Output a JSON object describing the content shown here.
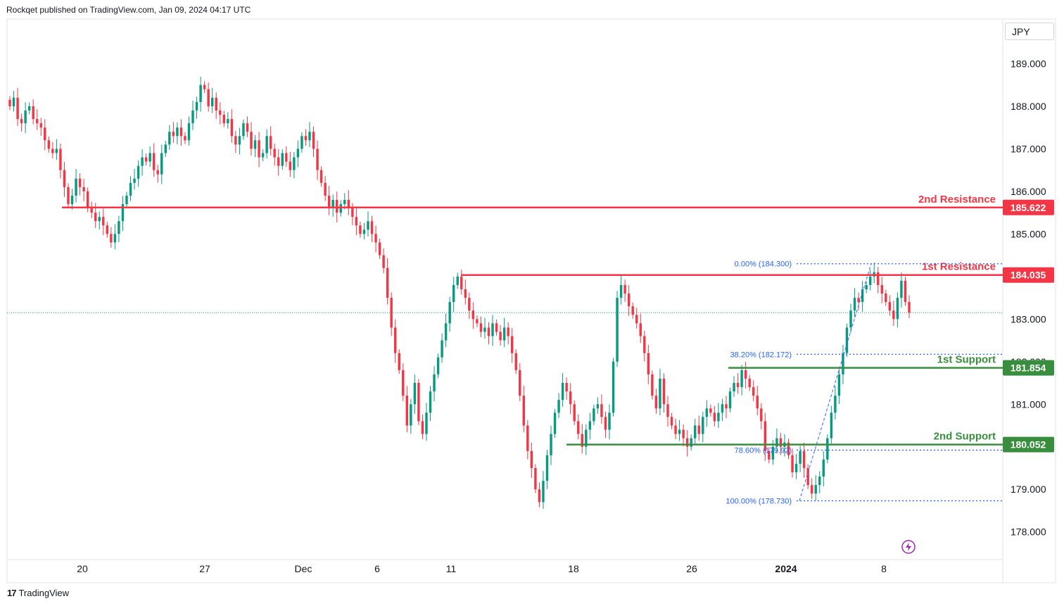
{
  "header": {
    "published_by": "Rockqet published on TradingView.com, Jan 09, 2024 04:17 UTC"
  },
  "currency": "JPY",
  "footer": {
    "brand": "TradingView",
    "logo_mark": "17"
  },
  "colors": {
    "up": "#089981",
    "down": "#f23645",
    "resistance": "#f23645",
    "support": "#388e3c",
    "fib": "#2962ff",
    "grid_border": "#e0e3eb"
  },
  "chart_data": {
    "type": "candlestick",
    "y_axis": {
      "ticks": [
        189.0,
        188.0,
        187.0,
        186.0,
        185.0,
        184.0,
        183.0,
        182.0,
        181.0,
        180.0,
        179.0,
        178.0
      ],
      "tick_labels": [
        "189.000",
        "188.000",
        "187.000",
        "186.000",
        "185.000",
        "184.000",
        "183.000",
        "182.000",
        "181.000",
        "180.000",
        "179.000",
        "178.000"
      ],
      "ylim": [
        177.35,
        190.05
      ]
    },
    "x_axis": {
      "tick_labels": [
        "20",
        "27",
        "Dec",
        "6",
        "11",
        "18",
        "26",
        "2024",
        "8"
      ]
    },
    "last_price": 183.15,
    "levels": [
      {
        "name": "2nd Resistance",
        "value": 185.622,
        "label": "185.622",
        "kind": "resistance"
      },
      {
        "name": "1st Resistance",
        "value": 184.035,
        "label": "184.035",
        "kind": "resistance"
      },
      {
        "name": "1st Support",
        "value": 181.854,
        "label": "181.854",
        "kind": "support"
      },
      {
        "name": "2nd Support",
        "value": 180.052,
        "label": "180.052",
        "kind": "support"
      }
    ],
    "fibonacci": [
      {
        "label": "0.00% (184.300)",
        "value": 184.3
      },
      {
        "label": "38.20% (182.172)",
        "value": 182.172
      },
      {
        "label": "78.60% (179.92)",
        "value": 179.92
      },
      {
        "label": "100.00% (178.730)",
        "value": 178.73
      }
    ],
    "close": [
      188.0,
      188.2,
      187.7,
      187.6,
      187.9,
      188.0,
      187.7,
      187.6,
      187.5,
      187.2,
      187.0,
      186.9,
      187.0,
      186.5,
      186.1,
      185.7,
      185.9,
      186.3,
      186.1,
      186.0,
      185.6,
      185.5,
      185.3,
      185.4,
      185.2,
      185.0,
      184.8,
      185.0,
      185.3,
      185.7,
      185.9,
      186.2,
      186.3,
      186.6,
      186.8,
      186.7,
      186.9,
      186.5,
      186.4,
      186.9,
      187.1,
      187.4,
      187.3,
      187.5,
      187.3,
      187.2,
      187.6,
      187.9,
      188.1,
      188.5,
      188.4,
      188.0,
      188.2,
      187.9,
      187.8,
      187.6,
      187.7,
      187.3,
      187.1,
      187.3,
      187.6,
      187.4,
      187.0,
      187.2,
      186.8,
      186.9,
      187.3,
      187.0,
      186.8,
      186.6,
      186.9,
      186.7,
      186.5,
      186.8,
      187.0,
      187.3,
      187.2,
      187.4,
      187.0,
      186.5,
      186.2,
      185.9,
      185.6,
      185.8,
      185.5,
      185.7,
      185.8,
      185.6,
      185.4,
      185.2,
      185.0,
      185.1,
      185.3,
      185.0,
      184.8,
      184.5,
      184.2,
      183.5,
      182.8,
      182.2,
      181.8,
      181.2,
      180.5,
      181.0,
      181.5,
      180.6,
      180.3,
      180.8,
      181.3,
      181.7,
      182.1,
      182.5,
      182.9,
      183.4,
      183.8,
      184.0,
      183.7,
      183.5,
      183.2,
      183.0,
      182.9,
      182.7,
      182.8,
      182.6,
      182.9,
      182.7,
      182.5,
      182.8,
      182.6,
      182.2,
      181.8,
      181.2,
      180.5,
      179.9,
      179.5,
      179.0,
      178.7,
      179.2,
      179.8,
      180.3,
      180.8,
      181.1,
      181.5,
      181.3,
      181.0,
      180.6,
      180.3,
      180.0,
      180.4,
      180.6,
      180.9,
      181.0,
      180.7,
      180.4,
      180.8,
      182.0,
      183.5,
      183.8,
      183.6,
      183.3,
      183.1,
      182.9,
      182.6,
      182.2,
      181.7,
      181.2,
      180.9,
      181.6,
      181.0,
      180.7,
      180.5,
      180.3,
      180.4,
      180.2,
      180.0,
      180.2,
      180.5,
      180.3,
      180.7,
      180.9,
      180.8,
      180.6,
      180.8,
      181.0,
      180.9,
      181.3,
      181.5,
      181.4,
      181.8,
      181.6,
      181.4,
      181.2,
      180.9,
      180.6,
      179.9,
      179.7,
      180.0,
      180.2,
      180.0,
      180.1,
      179.8,
      179.4,
      179.6,
      179.9,
      179.5,
      179.1,
      178.9,
      179.1,
      179.3,
      179.7,
      180.2,
      180.8,
      181.2,
      181.7,
      182.2,
      182.8,
      183.2,
      183.5,
      183.4,
      183.7,
      183.8,
      184.0,
      184.1,
      183.8,
      183.6,
      183.4,
      183.2,
      183.0,
      183.5,
      183.9,
      183.4,
      183.15
    ]
  }
}
